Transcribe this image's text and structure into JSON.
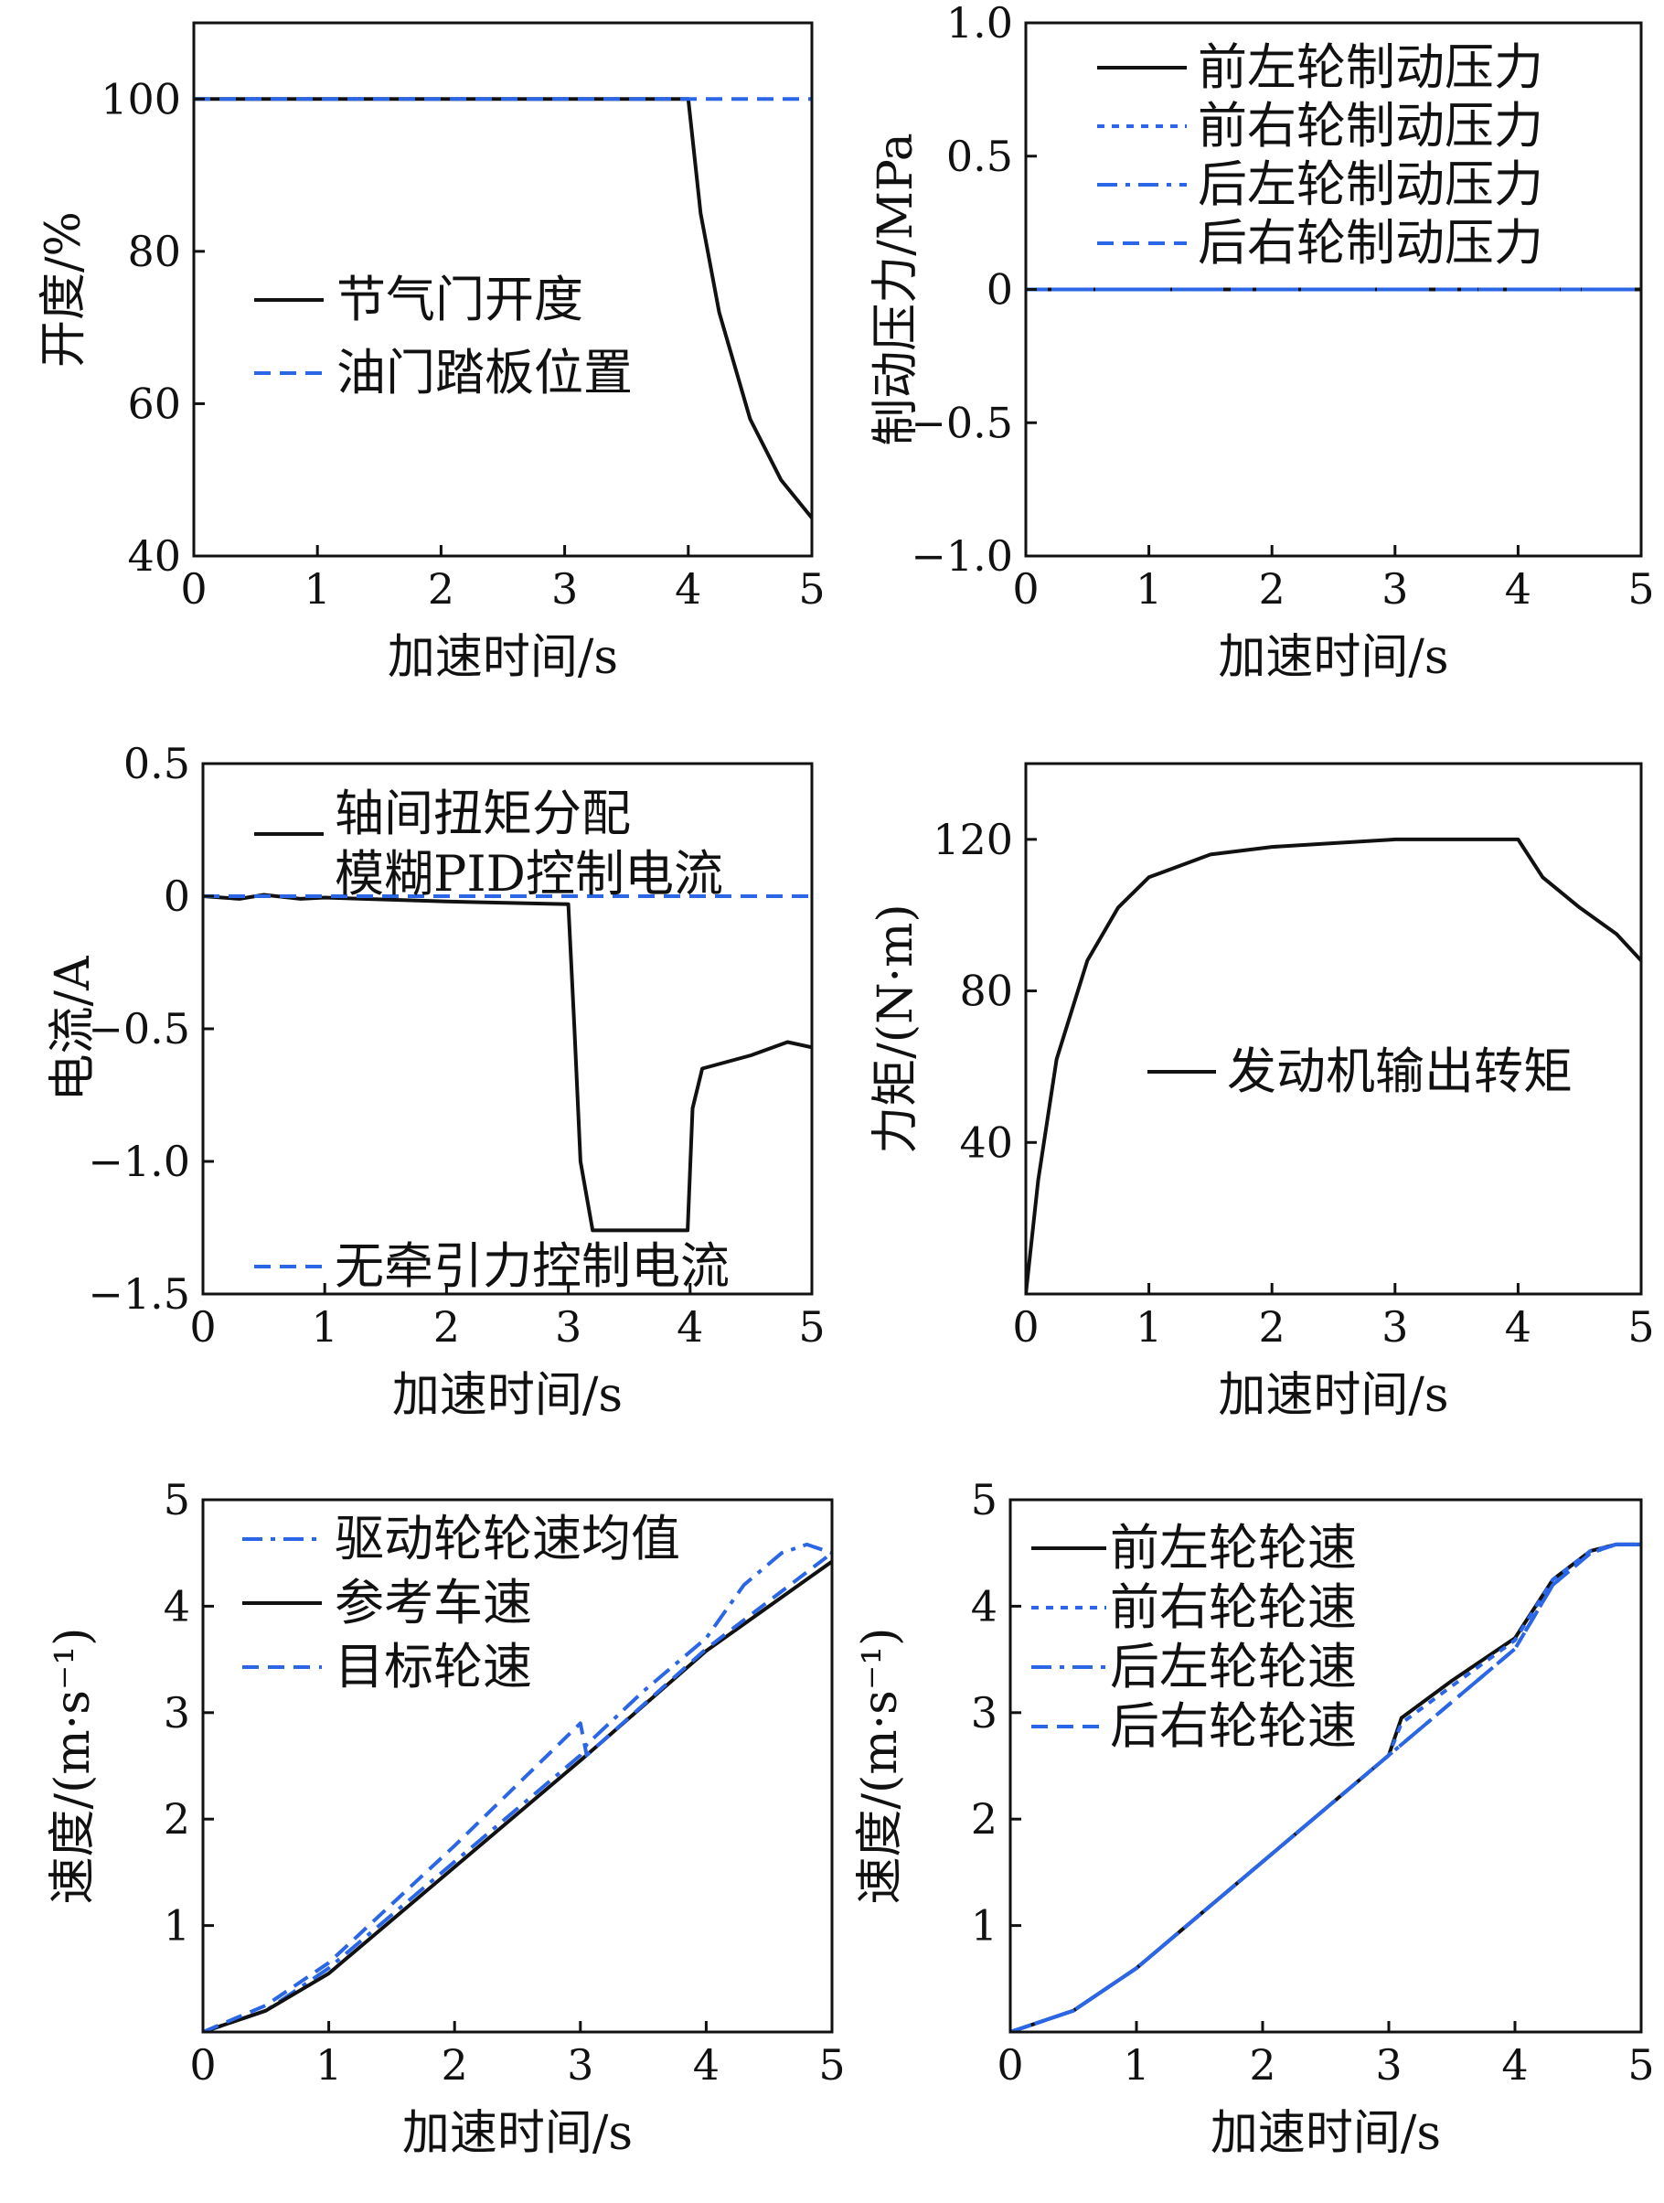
{
  "colors": {
    "black": "#111111",
    "blue": "#2a66e6"
  },
  "chart_data": [
    {
      "type": "line",
      "xlabel": "加速时间/s",
      "ylabel": "开度/%",
      "xlim": [
        0,
        5
      ],
      "ylim": [
        40,
        110
      ],
      "xticks": [
        0,
        1,
        2,
        3,
        4,
        5
      ],
      "yticks": [
        40,
        60,
        80,
        100
      ],
      "legend_placement": "center-left",
      "series": [
        {
          "name": "节气门开度",
          "color": "#111111",
          "dash": "solid",
          "x": [
            0,
            1,
            2,
            3,
            4,
            4.1,
            4.25,
            4.5,
            4.75,
            5
          ],
          "y": [
            100,
            100,
            100,
            100,
            100,
            85,
            72,
            58,
            50,
            45
          ]
        },
        {
          "name": "油门踏板位置",
          "color": "#2a66e6",
          "dash": "dashed",
          "x": [
            0,
            5
          ],
          "y": [
            100,
            100
          ]
        }
      ]
    },
    {
      "type": "line",
      "xlabel": "加速时间/s",
      "ylabel": "制动压力/MPa",
      "xlim": [
        0,
        5
      ],
      "ylim": [
        -1,
        1
      ],
      "xticks": [
        0,
        1,
        2,
        3,
        4,
        5
      ],
      "yticks": [
        -1.0,
        -0.5,
        0,
        0.5,
        1.0
      ],
      "ytick_labels": [
        "−1.0",
        "−0.5",
        "0",
        "0.5",
        "1.0"
      ],
      "legend_placement": "top-right",
      "series": [
        {
          "name": "前左轮制动压力",
          "color": "#111111",
          "dash": "solid",
          "x": [
            0,
            5
          ],
          "y": [
            0,
            0
          ]
        },
        {
          "name": "前右轮制动压力",
          "color": "#2a66e6",
          "dash": "dotted",
          "x": [
            0,
            5
          ],
          "y": [
            0,
            0
          ]
        },
        {
          "name": "后左轮制动压力",
          "color": "#2a66e6",
          "dash": "dashdot",
          "x": [
            0,
            5
          ],
          "y": [
            0,
            0
          ]
        },
        {
          "name": "后右轮制动压力",
          "color": "#2a66e6",
          "dash": "dashed",
          "x": [
            0,
            5
          ],
          "y": [
            0,
            0
          ]
        }
      ]
    },
    {
      "type": "line",
      "xlabel": "加速时间/s",
      "ylabel": "电流/A",
      "xlim": [
        0,
        5
      ],
      "ylim": [
        -1.5,
        0.5
      ],
      "xticks": [
        0,
        1,
        2,
        3,
        4,
        5
      ],
      "yticks": [
        -1.5,
        -1.0,
        -0.5,
        0,
        0.5
      ],
      "ytick_labels": [
        "−1.5",
        "−1.0",
        "−0.5",
        "0",
        "0.5"
      ],
      "legend_placement": "top-left / bottom-left",
      "series": [
        {
          "name": "轴间扭矩分配模糊PID控制电流",
          "color": "#111111",
          "dash": "solid",
          "x": [
            0,
            0.3,
            0.5,
            0.8,
            1.0,
            2.0,
            3.0,
            3.05,
            3.1,
            3.2,
            3.5,
            3.98,
            4.02,
            4.1,
            4.5,
            4.8,
            5.0
          ],
          "y": [
            0,
            -0.01,
            0.005,
            -0.01,
            -0.005,
            -0.02,
            -0.03,
            -0.5,
            -1.0,
            -1.26,
            -1.26,
            -1.26,
            -0.8,
            -0.65,
            -0.6,
            -0.55,
            -0.57
          ]
        },
        {
          "name": "无牵引力控制电流",
          "color": "#2a66e6",
          "dash": "dashed",
          "x": [
            0,
            5
          ],
          "y": [
            0,
            0
          ]
        }
      ]
    },
    {
      "type": "line",
      "xlabel": "加速时间/s",
      "ylabel": "力矩/(N·m)",
      "xlim": [
        0,
        5
      ],
      "ylim": [
        0,
        140
      ],
      "xticks": [
        0,
        1,
        2,
        3,
        4,
        5
      ],
      "yticks": [
        40,
        80,
        120
      ],
      "legend_placement": "center-right",
      "series": [
        {
          "name": "发动机输出转矩",
          "color": "#111111",
          "dash": "solid",
          "x": [
            0,
            0.1,
            0.25,
            0.5,
            0.75,
            1.0,
            1.5,
            2.0,
            2.5,
            3.0,
            3.5,
            4.0,
            4.2,
            4.5,
            4.8,
            5.0
          ],
          "y": [
            0,
            30,
            62,
            88,
            102,
            110,
            116,
            118,
            119,
            120,
            120,
            120,
            110,
            102,
            95,
            88
          ]
        }
      ]
    },
    {
      "type": "line",
      "xlabel": "加速时间/s",
      "ylabel": "速度/(m·s⁻¹)",
      "xlim": [
        0,
        5
      ],
      "ylim": [
        0,
        5
      ],
      "xticks": [
        0,
        1,
        2,
        3,
        4,
        5
      ],
      "yticks": [
        1,
        2,
        3,
        4,
        5
      ],
      "legend_placement": "top-left",
      "series": [
        {
          "name": "驱动轮轮速均值",
          "color": "#2a66e6",
          "dash": "dashdot",
          "x": [
            0,
            0.5,
            1.0,
            2.0,
            3.0,
            3.05,
            3.5,
            4.0,
            4.3,
            4.6,
            4.8,
            5.0
          ],
          "y": [
            0,
            0.2,
            0.6,
            1.6,
            2.6,
            2.7,
            3.2,
            3.7,
            4.2,
            4.5,
            4.58,
            4.5
          ]
        },
        {
          "name": "参考车速",
          "color": "#111111",
          "dash": "solid",
          "x": [
            0,
            0.5,
            1.0,
            2.0,
            3.0,
            4.0,
            5.0
          ],
          "y": [
            0,
            0.2,
            0.55,
            1.55,
            2.55,
            3.58,
            4.42
          ]
        },
        {
          "name": "目标轮速",
          "color": "#2a66e6",
          "dash": "dashed",
          "x": [
            0,
            0.5,
            1.0,
            2.0,
            3.0,
            3.05,
            4.0,
            5.0
          ],
          "y": [
            0,
            0.25,
            0.65,
            1.75,
            2.9,
            2.6,
            3.6,
            4.5
          ]
        }
      ]
    },
    {
      "type": "line",
      "xlabel": "加速时间/s",
      "ylabel": "速度/(m·s⁻¹)",
      "xlim": [
        0,
        5
      ],
      "ylim": [
        0,
        5
      ],
      "xticks": [
        0,
        1,
        2,
        3,
        4,
        5
      ],
      "yticks": [
        1,
        2,
        3,
        4,
        5
      ],
      "legend_placement": "top-left",
      "series": [
        {
          "name": "前左轮轮速",
          "color": "#111111",
          "dash": "solid",
          "x": [
            0,
            0.5,
            1.0,
            2.0,
            3.0,
            3.1,
            3.5,
            4.0,
            4.3,
            4.6,
            4.8,
            5.0
          ],
          "y": [
            0,
            0.2,
            0.6,
            1.6,
            2.6,
            2.95,
            3.3,
            3.7,
            4.25,
            4.52,
            4.58,
            4.58
          ]
        },
        {
          "name": "前右轮轮速",
          "color": "#2a66e6",
          "dash": "dotted",
          "x": [
            0,
            0.5,
            1.0,
            2.0,
            3.0,
            3.1,
            3.5,
            4.0,
            4.3,
            4.6,
            4.8,
            5.0
          ],
          "y": [
            0,
            0.2,
            0.6,
            1.6,
            2.6,
            2.9,
            3.25,
            3.68,
            4.25,
            4.52,
            4.58,
            4.58
          ]
        },
        {
          "name": "后左轮轮速",
          "color": "#2a66e6",
          "dash": "dashdot",
          "x": [
            0,
            0.5,
            1.0,
            2.0,
            3.0,
            4.0,
            4.3,
            4.6,
            4.8,
            5.0
          ],
          "y": [
            0,
            0.2,
            0.6,
            1.6,
            2.6,
            3.6,
            4.2,
            4.5,
            4.58,
            4.58
          ]
        },
        {
          "name": "后右轮轮速",
          "color": "#2a66e6",
          "dash": "dashed",
          "x": [
            0,
            0.5,
            1.0,
            2.0,
            3.0,
            4.0,
            4.3,
            4.6,
            4.8,
            5.0
          ],
          "y": [
            0,
            0.2,
            0.6,
            1.6,
            2.6,
            3.6,
            4.2,
            4.5,
            4.58,
            4.58
          ]
        }
      ]
    }
  ]
}
